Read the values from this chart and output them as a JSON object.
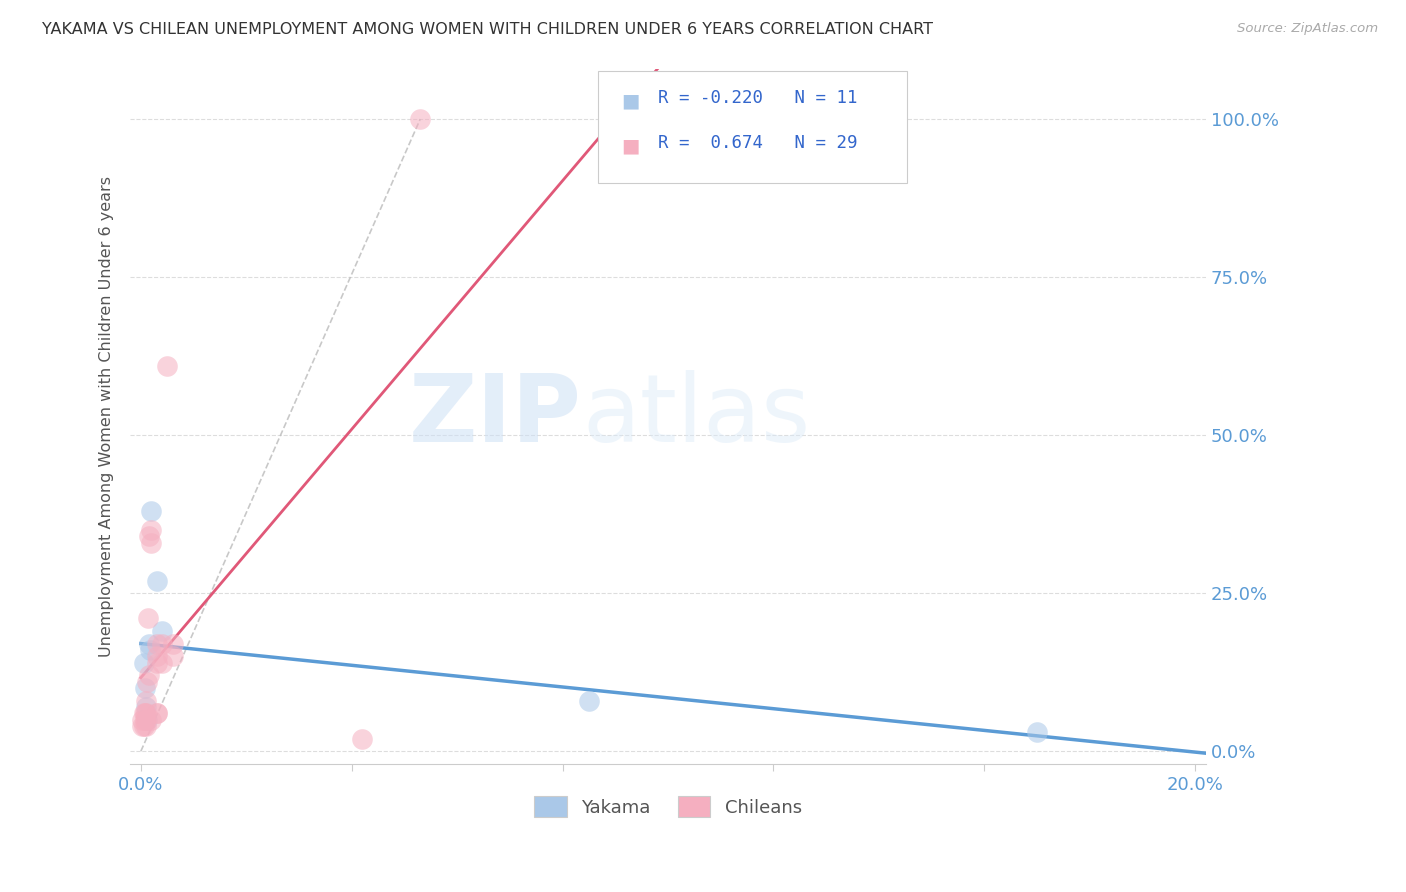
{
  "title": "YAKAMA VS CHILEAN UNEMPLOYMENT AMONG WOMEN WITH CHILDREN UNDER 6 YEARS CORRELATION CHART",
  "source": "Source: ZipAtlas.com",
  "ylabel": "Unemployment Among Women with Children Under 6 years",
  "ytick_labels": [
    "0.0%",
    "25.0%",
    "50.0%",
    "75.0%",
    "100.0%"
  ],
  "ytick_values": [
    0.0,
    0.25,
    0.5,
    0.75,
    1.0
  ],
  "xtick_values": [
    0.0,
    0.04,
    0.08,
    0.12,
    0.16,
    0.2
  ],
  "xlim": [
    -0.002,
    0.202
  ],
  "ylim": [
    -0.02,
    1.08
  ],
  "watermark_zip": "ZIP",
  "watermark_atlas": "atlas",
  "yakama_R": -0.22,
  "yakama_N": 11,
  "chilean_R": 0.674,
  "chilean_N": 29,
  "yakama_color": "#aac8e8",
  "chilean_color": "#f5afc0",
  "yakama_line_color": "#5b9bd5",
  "chilean_line_color": "#e05878",
  "yakama_scatter": [
    [
      0.0005,
      0.14
    ],
    [
      0.0008,
      0.1
    ],
    [
      0.001,
      0.07
    ],
    [
      0.0012,
      0.05
    ],
    [
      0.0015,
      0.17
    ],
    [
      0.0018,
      0.16
    ],
    [
      0.002,
      0.38
    ],
    [
      0.003,
      0.27
    ],
    [
      0.004,
      0.19
    ],
    [
      0.085,
      0.08
    ],
    [
      0.17,
      0.03
    ]
  ],
  "chilean_scatter": [
    [
      0.0002,
      0.04
    ],
    [
      0.0003,
      0.05
    ],
    [
      0.0005,
      0.06
    ],
    [
      0.0006,
      0.04
    ],
    [
      0.0007,
      0.05
    ],
    [
      0.0008,
      0.06
    ],
    [
      0.001,
      0.04
    ],
    [
      0.001,
      0.05
    ],
    [
      0.001,
      0.06
    ],
    [
      0.001,
      0.08
    ],
    [
      0.0012,
      0.11
    ],
    [
      0.0013,
      0.21
    ],
    [
      0.0015,
      0.12
    ],
    [
      0.0016,
      0.34
    ],
    [
      0.002,
      0.05
    ],
    [
      0.002,
      0.33
    ],
    [
      0.002,
      0.35
    ],
    [
      0.003,
      0.15
    ],
    [
      0.003,
      0.17
    ],
    [
      0.003,
      0.06
    ],
    [
      0.003,
      0.06
    ],
    [
      0.003,
      0.14
    ],
    [
      0.004,
      0.14
    ],
    [
      0.004,
      0.17
    ],
    [
      0.005,
      0.61
    ],
    [
      0.006,
      0.15
    ],
    [
      0.006,
      0.17
    ],
    [
      0.042,
      0.02
    ],
    [
      0.053,
      1.0
    ]
  ],
  "background_color": "#ffffff",
  "grid_color": "#dddddd",
  "title_color": "#333333",
  "axis_color": "#5b9bd5",
  "legend_text_color": "#3366cc",
  "dashed_line_x": [
    0.0,
    0.053
  ],
  "dashed_line_y": [
    0.0,
    1.0
  ]
}
